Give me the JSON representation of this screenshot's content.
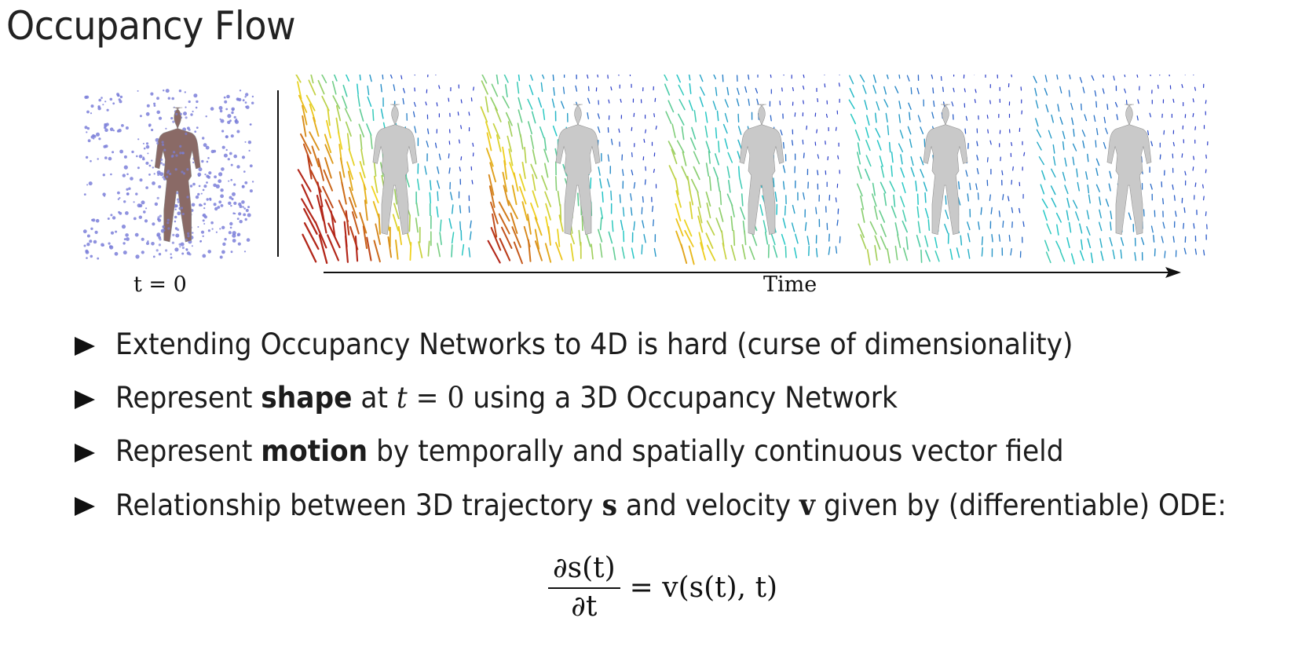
{
  "slide": {
    "title": "Occupancy Flow"
  },
  "figure": {
    "caption_t0": "t = 0",
    "caption_time": "Time",
    "panels": [
      {
        "name": "shape-t0",
        "kind": "point-cloud"
      },
      {
        "name": "flow-1",
        "kind": "vector-field"
      },
      {
        "name": "flow-2",
        "kind": "vector-field"
      },
      {
        "name": "flow-3",
        "kind": "vector-field"
      },
      {
        "name": "flow-4",
        "kind": "vector-field"
      },
      {
        "name": "flow-5",
        "kind": "vector-field"
      }
    ],
    "colors": {
      "points": "#7b7fd9",
      "body_t0": "#8a6a66",
      "mesh": "#c9c9c9",
      "arrow_cold": "#2a3cc8",
      "arrow_mid": "#25c9c6",
      "arrow_warm": "#f2d41d",
      "arrow_hot": "#b3271a"
    }
  },
  "bullets": [
    {
      "parts": [
        {
          "t": "Extending Occupancy Networks to 4D is hard (curse of dimensionality)"
        }
      ]
    },
    {
      "parts": [
        {
          "t": "Represent "
        },
        {
          "t": "shape",
          "style": "b"
        },
        {
          "t": " at "
        },
        {
          "t": "t",
          "style": "math-i"
        },
        {
          "t": " = 0",
          "style": "math"
        },
        {
          "t": " using a 3D Occupancy Network"
        }
      ]
    },
    {
      "parts": [
        {
          "t": "Represent "
        },
        {
          "t": "motion",
          "style": "b"
        },
        {
          "t": " by temporally and spatially continuous vector field"
        }
      ]
    },
    {
      "parts": [
        {
          "t": "Relationship between 3D trajectory "
        },
        {
          "t": "s",
          "style": "math-b"
        },
        {
          "t": " and velocity "
        },
        {
          "t": "v",
          "style": "math-b"
        },
        {
          "t": " given by (differentiable) ODE:"
        }
      ]
    }
  ],
  "equation": {
    "numerator": "∂s(t)",
    "denominator": "∂t",
    "rhs": "= v(s(t), t)"
  }
}
